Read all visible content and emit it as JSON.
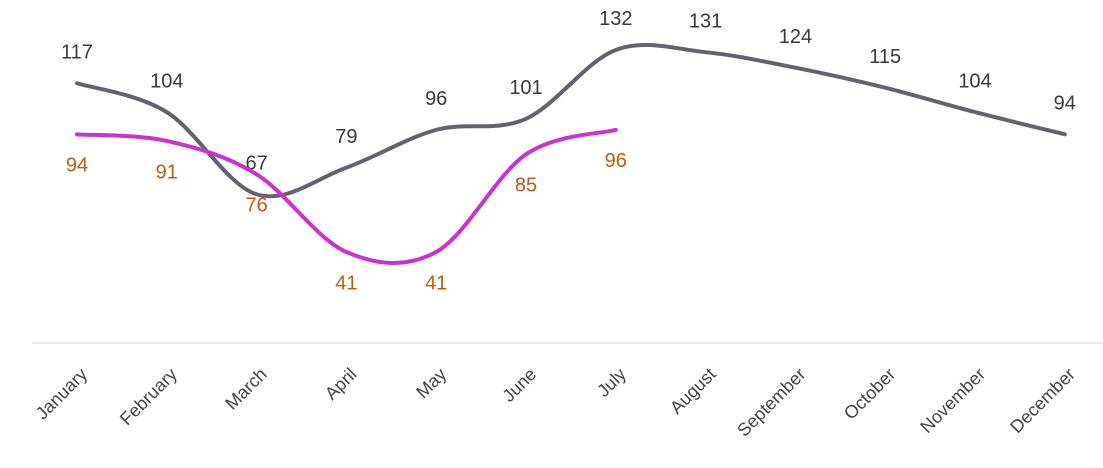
{
  "chart_data": {
    "type": "line",
    "categories": [
      "January",
      "February",
      "March",
      "April",
      "May",
      "June",
      "July",
      "August",
      "September",
      "October",
      "November",
      "December"
    ],
    "series": [
      {
        "color": "#63636f",
        "label_color": "#3a3a3a",
        "label_position": "above",
        "values": [
          117,
          104,
          67,
          79,
          96,
          101,
          132,
          131,
          124,
          115,
          104,
          94
        ]
      },
      {
        "color": "#cc33cc",
        "label_color": "#c55a11",
        "label_position": "below",
        "values": [
          94,
          91,
          76,
          41,
          41,
          85,
          96,
          null,
          null,
          null,
          null,
          null
        ]
      }
    ],
    "ylim": [
      0,
      150
    ],
    "smooth": true,
    "grid": false
  }
}
